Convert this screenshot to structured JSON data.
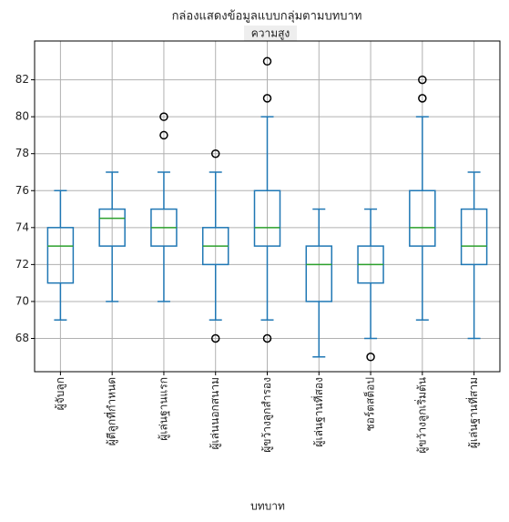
{
  "chart_data": {
    "type": "box",
    "title": "กล่องแสดงข้อมูลแบบกลุ่มตามบทบาท",
    "subtitle": "ความสูง",
    "x_label": "บทบาท",
    "categories": [
      "ผู้จับลูก",
      "ผู้ตีลูกที่กำหนด",
      "ผู้เล่นฐานแรก",
      "ผู้เล่นนอกสนาม",
      "ผู้ขว้างลูกสำรอง",
      "ผู้เล่นฐานที่สอง",
      "ชอร์ตสต็อป",
      "ผู้ขว้างลูกเริ่มต้น",
      "ผู้เล่นฐานที่สาม"
    ],
    "boxes": [
      {
        "whisker_low": 69,
        "q1": 71,
        "median": 73,
        "q3": 74,
        "whisker_high": 76,
        "outliers": []
      },
      {
        "whisker_low": 70,
        "q1": 73,
        "median": 74.5,
        "q3": 75,
        "whisker_high": 77,
        "outliers": []
      },
      {
        "whisker_low": 70,
        "q1": 73,
        "median": 74,
        "q3": 75,
        "whisker_high": 77,
        "outliers": [
          80,
          79
        ]
      },
      {
        "whisker_low": 69,
        "q1": 72,
        "median": 73,
        "q3": 74,
        "whisker_high": 77,
        "outliers": [
          78,
          68
        ]
      },
      {
        "whisker_low": 69,
        "q1": 73,
        "median": 74,
        "q3": 76,
        "whisker_high": 80,
        "outliers": [
          83,
          81,
          68
        ]
      },
      {
        "whisker_low": 67,
        "q1": 70,
        "median": 72,
        "q3": 73,
        "whisker_high": 75,
        "outliers": []
      },
      {
        "whisker_low": 68,
        "q1": 71,
        "median": 72,
        "q3": 73,
        "whisker_high": 75,
        "outliers": [
          67
        ]
      },
      {
        "whisker_low": 69,
        "q1": 73,
        "median": 74,
        "q3": 76,
        "whisker_high": 80,
        "outliers": [
          82,
          81
        ]
      },
      {
        "whisker_low": 68,
        "q1": 72,
        "median": 73,
        "q3": 75,
        "whisker_high": 77,
        "outliers": []
      }
    ],
    "box_color": "#1f77b4",
    "median_color": "#2ca02c",
    "ylim": [
      66.2,
      84.1
    ],
    "yticks": [
      68,
      70,
      72,
      74,
      76,
      78,
      80,
      82
    ],
    "grid": true
  }
}
